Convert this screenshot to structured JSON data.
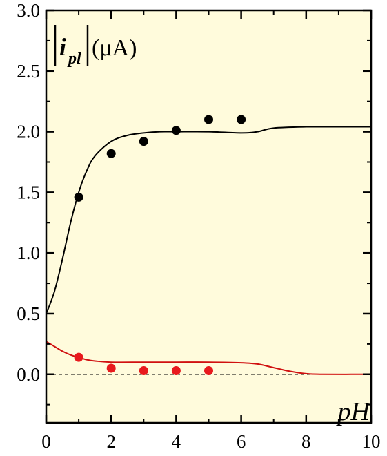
{
  "chart_data": {
    "type": "scatter",
    "background": "#fffbdc",
    "xlabel": "pH",
    "ylabel": {
      "main": "i",
      "subscript": "pl",
      "unit": "(μA)"
    },
    "xlim": [
      0,
      10
    ],
    "ylim": [
      -0.4,
      3.0
    ],
    "xticks": [
      0,
      2,
      4,
      6,
      8,
      10
    ],
    "xtick_labels": [
      "0",
      "2",
      "4",
      "6",
      "8",
      "10"
    ],
    "yticks": [
      0.0,
      0.5,
      1.0,
      1.5,
      2.0,
      2.5,
      3.0
    ],
    "ytick_labels": [
      "0.0",
      "0.5",
      "1.0",
      "1.5",
      "2.0",
      "2.5",
      "3.0"
    ],
    "grid": false,
    "reference_line": {
      "y": 0,
      "style": "dashed",
      "color": "#000000"
    },
    "series": [
      {
        "kind": "points",
        "color": "#000000",
        "x": [
          1,
          2,
          3,
          4,
          5,
          6
        ],
        "y": [
          1.46,
          1.82,
          1.92,
          2.01,
          2.1,
          2.1
        ]
      },
      {
        "kind": "line",
        "color": "#000000",
        "x": [
          0,
          0.25,
          0.5,
          0.75,
          1,
          1.25,
          1.5,
          2,
          2.5,
          3,
          3.5,
          4,
          5,
          6,
          6.5,
          7,
          8,
          9,
          10
        ],
        "y": [
          0.5,
          0.68,
          0.95,
          1.25,
          1.5,
          1.68,
          1.8,
          1.92,
          1.97,
          1.99,
          2.0,
          2.0,
          2.0,
          1.99,
          2.0,
          2.03,
          2.04,
          2.04,
          2.04
        ]
      },
      {
        "kind": "points",
        "color": "#e8191d",
        "x": [
          1,
          2,
          3,
          4,
          5
        ],
        "y": [
          0.14,
          0.05,
          0.03,
          0.03,
          0.03
        ]
      },
      {
        "kind": "line",
        "color": "#d01010",
        "x": [
          0,
          0.25,
          0.5,
          0.75,
          1,
          1.25,
          1.5,
          2,
          3,
          4,
          5,
          6,
          6.5,
          7,
          7.5,
          8,
          8.5,
          10
        ],
        "y": [
          0.27,
          0.23,
          0.19,
          0.16,
          0.14,
          0.12,
          0.11,
          0.1,
          0.1,
          0.1,
          0.1,
          0.095,
          0.085,
          0.055,
          0.025,
          0.005,
          0.0,
          0.0
        ]
      }
    ]
  }
}
